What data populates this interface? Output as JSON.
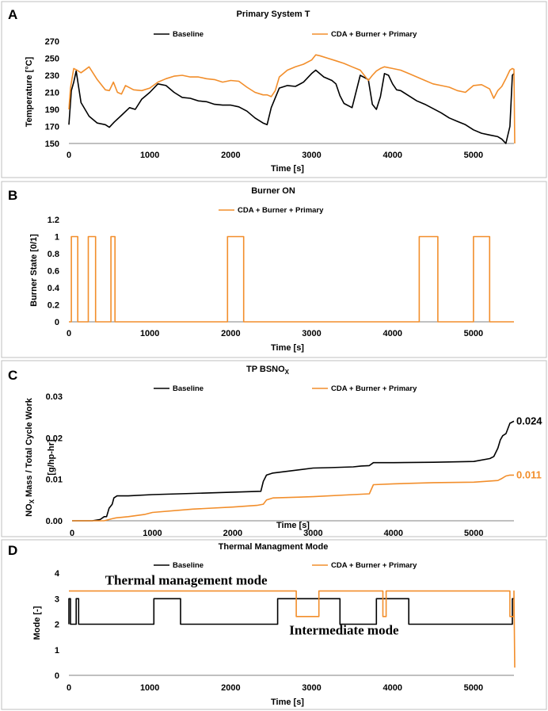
{
  "chart_data": [
    {
      "panel": "A",
      "type": "line",
      "title": "Primary System T",
      "xlabel": "Time [s]",
      "ylabel": "Temperature [°C]",
      "xlim": [
        0,
        5500
      ],
      "ylim": [
        150,
        270
      ],
      "xticks": [
        0,
        1000,
        2000,
        3000,
        4000,
        5000
      ],
      "yticks": [
        150,
        170,
        190,
        210,
        230,
        250,
        270
      ],
      "colors": {
        "Baseline": "#000000",
        "CDA + Burner + Primary": "#f28e2b"
      },
      "series": [
        {
          "name": "Baseline",
          "x": [
            0,
            30,
            60,
            90,
            150,
            250,
            350,
            450,
            500,
            560,
            650,
            750,
            820,
            900,
            1000,
            1100,
            1200,
            1300,
            1400,
            1500,
            1600,
            1700,
            1800,
            1900,
            2000,
            2100,
            2200,
            2300,
            2400,
            2450,
            2500,
            2600,
            2700,
            2800,
            2900,
            3000,
            3050,
            3150,
            3250,
            3300,
            3350,
            3400,
            3500,
            3600,
            3700,
            3750,
            3800,
            3850,
            3900,
            3950,
            4000,
            4050,
            4100,
            4200,
            4300,
            4400,
            4500,
            4600,
            4700,
            4800,
            4900,
            5000,
            5100,
            5200,
            5300,
            5350,
            5400,
            5450,
            5480,
            5500
          ],
          "y": [
            172,
            212,
            222,
            235,
            198,
            182,
            174,
            172,
            169,
            175,
            183,
            192,
            190,
            202,
            210,
            220,
            218,
            210,
            204,
            203,
            200,
            199,
            196,
            195,
            195,
            193,
            188,
            180,
            174,
            172,
            192,
            215,
            218,
            217,
            222,
            232,
            236,
            228,
            224,
            220,
            206,
            197,
            192,
            230,
            225,
            196,
            190,
            205,
            232,
            230,
            220,
            213,
            212,
            206,
            200,
            196,
            191,
            186,
            180,
            176,
            172,
            166,
            162,
            160,
            158,
            155,
            150,
            170,
            230,
            232
          ]
        },
        {
          "name": "CDA + Burner + Primary",
          "x": [
            0,
            20,
            60,
            100,
            150,
            250,
            350,
            450,
            500,
            550,
            600,
            650,
            700,
            800,
            900,
            1000,
            1100,
            1200,
            1300,
            1400,
            1500,
            1600,
            1700,
            1800,
            1900,
            2000,
            2100,
            2200,
            2300,
            2400,
            2450,
            2500,
            2550,
            2600,
            2700,
            2800,
            2900,
            3000,
            3050,
            3100,
            3200,
            3300,
            3400,
            3500,
            3600,
            3650,
            3700,
            3750,
            3800,
            3850,
            3900,
            4000,
            4100,
            4200,
            4300,
            4400,
            4500,
            4600,
            4700,
            4800,
            4900,
            5000,
            5100,
            5200,
            5250,
            5300,
            5350,
            5400,
            5450,
            5480,
            5500,
            5510
          ],
          "y": [
            190,
            215,
            238,
            236,
            233,
            240,
            225,
            213,
            212,
            222,
            210,
            208,
            218,
            213,
            212,
            215,
            222,
            226,
            229,
            230,
            228,
            228,
            226,
            225,
            222,
            224,
            223,
            216,
            210,
            207,
            207,
            205,
            212,
            228,
            236,
            240,
            243,
            248,
            254,
            253,
            250,
            247,
            244,
            240,
            236,
            230,
            224,
            230,
            235,
            238,
            240,
            238,
            236,
            232,
            228,
            224,
            220,
            218,
            216,
            212,
            210,
            218,
            219,
            214,
            203,
            212,
            217,
            226,
            236,
            238,
            237,
            150
          ]
        }
      ],
      "legend": [
        "Baseline",
        "CDA + Burner + Primary"
      ]
    },
    {
      "panel": "B",
      "type": "line",
      "title": "Burner ON",
      "xlabel": "Time [s]",
      "ylabel": "Burner State [0/1]",
      "xlim": [
        0,
        5500
      ],
      "ylim": [
        0,
        1.2
      ],
      "xticks": [
        0,
        1000,
        2000,
        3000,
        4000,
        5000
      ],
      "yticks": [
        0,
        0.2,
        0.4,
        0.6,
        0.8,
        1,
        1.2
      ],
      "colors": {
        "CDA + Burner + Primary": "#f28e2b"
      },
      "series": [
        {
          "name": "CDA + Burner + Primary",
          "x": [
            0,
            30,
            30,
            110,
            110,
            240,
            240,
            330,
            330,
            520,
            520,
            570,
            570,
            1960,
            1960,
            2160,
            2160,
            4330,
            4330,
            4560,
            4560,
            5000,
            5000,
            5200,
            5200,
            5500
          ],
          "y": [
            0,
            0,
            1,
            1,
            0,
            0,
            1,
            1,
            0,
            0,
            1,
            1,
            0,
            0,
            1,
            1,
            0,
            0,
            1,
            1,
            0,
            0,
            1,
            1,
            0,
            0
          ]
        }
      ],
      "legend": [
        "CDA + Burner + Primary"
      ]
    },
    {
      "panel": "C",
      "type": "line",
      "title": "TP BSNO",
      "title_sub": "X",
      "xlabel": "Time [s]",
      "ylabel_parts": [
        "NO",
        "X",
        " Mass / Total Cycle Work"
      ],
      "ylabel2": "[g/hp-hr]",
      "xlim": [
        0,
        5500
      ],
      "ylim": [
        0,
        0.03
      ],
      "xticks": [
        0,
        1000,
        2000,
        3000,
        4000,
        5000
      ],
      "yticks": [
        0,
        0.01,
        0.02,
        0.03
      ],
      "ytick_labels": [
        "0.00",
        "0.01",
        "0.02",
        "0.03"
      ],
      "end_labels": [
        "0.024",
        "0.011"
      ],
      "colors": {
        "Baseline": "#000000",
        "CDA + Burner + Primary": "#f28e2b"
      },
      "series": [
        {
          "name": "Baseline",
          "x": [
            0,
            250,
            350,
            400,
            430,
            460,
            500,
            520,
            560,
            700,
            1000,
            1500,
            2000,
            2350,
            2380,
            2420,
            2500,
            3000,
            3200,
            3500,
            3600,
            3700,
            3750,
            4000,
            4500,
            5000,
            5200,
            5250,
            5300,
            5330,
            5360,
            5400,
            5450,
            5500
          ],
          "y": [
            0,
            0,
            0.0003,
            0.001,
            0.001,
            0.003,
            0.004,
            0.0055,
            0.006,
            0.006,
            0.0063,
            0.0066,
            0.0069,
            0.0071,
            0.0095,
            0.011,
            0.0115,
            0.0127,
            0.0128,
            0.013,
            0.0132,
            0.0133,
            0.014,
            0.014,
            0.0141,
            0.0143,
            0.015,
            0.0155,
            0.0175,
            0.0195,
            0.0205,
            0.021,
            0.0235,
            0.024
          ]
        },
        {
          "name": "CDA + Burner + Primary",
          "x": [
            0,
            400,
            500,
            550,
            700,
            900,
            1000,
            1500,
            2000,
            2300,
            2380,
            2420,
            2500,
            3000,
            3500,
            3700,
            3750,
            4000,
            4500,
            5000,
            5300,
            5350,
            5400,
            5450,
            5500
          ],
          "y": [
            0,
            0,
            0.0005,
            0.0007,
            0.001,
            0.0015,
            0.002,
            0.0028,
            0.0033,
            0.0037,
            0.004,
            0.005,
            0.0055,
            0.0058,
            0.0063,
            0.0065,
            0.0087,
            0.0089,
            0.0092,
            0.0093,
            0.0097,
            0.0102,
            0.0108,
            0.011,
            0.011
          ]
        }
      ],
      "legend": [
        "Baseline",
        "CDA + Burner + Primary"
      ]
    },
    {
      "panel": "D",
      "type": "line",
      "title": "Thermal Managment Mode",
      "xlabel": "Time [s]",
      "ylabel": "Mode [-]",
      "xlim": [
        0,
        5500
      ],
      "ylim": [
        0,
        4
      ],
      "xticks": [
        0,
        1000,
        2000,
        3000,
        4000,
        5000
      ],
      "yticks": [
        0,
        1,
        2,
        3,
        4
      ],
      "annotations": [
        {
          "text": "Thermal management mode",
          "x": 1450,
          "y": 3.55
        },
        {
          "text": "Intermediate mode",
          "x": 3400,
          "y": 1.6
        }
      ],
      "colors": {
        "Baseline": "#000000",
        "CDA + Burner + Primary": "#f28e2b"
      },
      "series": [
        {
          "name": "Baseline",
          "x": [
            0,
            0,
            20,
            20,
            90,
            90,
            120,
            120,
            1050,
            1050,
            1380,
            1380,
            2580,
            2580,
            3350,
            3350,
            3800,
            3800,
            4200,
            4200,
            5480,
            5480,
            5500
          ],
          "y": [
            2,
            3,
            3,
            2,
            2,
            3,
            3,
            2,
            2,
            3,
            3,
            2,
            2,
            3,
            3,
            2,
            2,
            3,
            3,
            2,
            2,
            3,
            3
          ]
        },
        {
          "name": "CDA + Burner + Primary",
          "x": [
            0,
            2810,
            2810,
            3090,
            3090,
            3880,
            3880,
            3920,
            3920,
            5450,
            5450,
            5500,
            5500,
            5510
          ],
          "y": [
            3.3,
            3.3,
            2.3,
            2.3,
            3.3,
            3.3,
            2.3,
            2.3,
            3.3,
            3.3,
            2.3,
            2.3,
            3.3,
            0.3
          ]
        }
      ],
      "legend": [
        "Baseline",
        "CDA + Burner + Primary"
      ]
    }
  ]
}
